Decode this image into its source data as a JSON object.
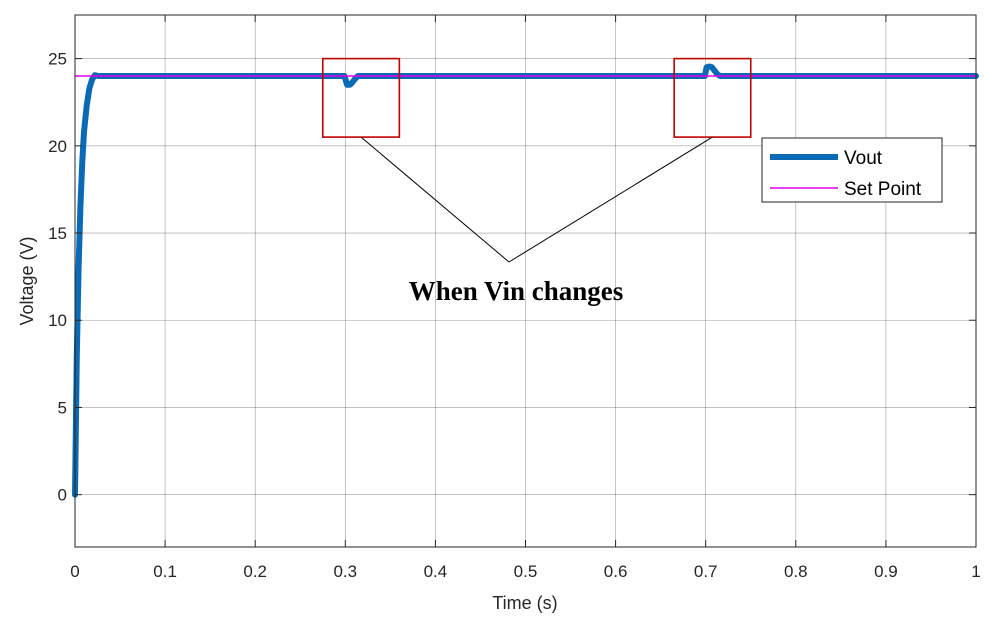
{
  "chart_data": {
    "type": "line",
    "xlabel": "Time (s)",
    "ylabel": "Voltage (V)",
    "xlim": [
      0,
      1
    ],
    "ylim": [
      -3,
      27.5
    ],
    "xticks": [
      0,
      0.1,
      0.2,
      0.3,
      0.4,
      0.5,
      0.6,
      0.7,
      0.8,
      0.9,
      1
    ],
    "xtick_labels": [
      "0",
      "0.1",
      "0.2",
      "0.3",
      "0.4",
      "0.5",
      "0.6",
      "0.7",
      "0.8",
      "0.9",
      "1"
    ],
    "yticks": [
      0,
      5,
      10,
      15,
      20,
      25
    ],
    "ytick_labels": [
      "0",
      "5",
      "10",
      "15",
      "20",
      "25"
    ],
    "grid": true,
    "legend_position": "right",
    "series": [
      {
        "name": "Vout",
        "color": "#0b6ab5",
        "x": [
          0,
          0.002,
          0.004,
          0.006,
          0.008,
          0.01,
          0.013,
          0.016,
          0.019,
          0.022,
          0.026,
          0.03,
          0.1,
          0.2,
          0.299,
          0.302,
          0.305,
          0.308,
          0.311,
          0.314,
          0.4,
          0.5,
          0.6,
          0.699,
          0.701,
          0.704,
          0.707,
          0.71,
          0.713,
          0.716,
          0.8,
          0.9,
          1
        ],
        "values": [
          0,
          8,
          13,
          16.5,
          19,
          20.8,
          22.3,
          23.3,
          23.8,
          24.05,
          24.0,
          24.0,
          24.0,
          24.0,
          24.0,
          23.5,
          23.5,
          23.65,
          23.85,
          24.0,
          24.0,
          24.0,
          24.0,
          24.0,
          24.5,
          24.55,
          24.5,
          24.3,
          24.1,
          24.0,
          24.0,
          24.0,
          24.0
        ]
      },
      {
        "name": "Set Point",
        "color": "#e600e6",
        "x": [
          0,
          1
        ],
        "values": [
          24,
          24
        ]
      }
    ],
    "annotations": [
      {
        "text": "When Vin changes",
        "boxes": [
          {
            "x": [
              0.275,
              0.36
            ],
            "y": [
              20.5,
              25
            ]
          },
          {
            "x": [
              0.665,
              0.75
            ],
            "y": [
              20.5,
              25
            ]
          }
        ]
      }
    ]
  }
}
